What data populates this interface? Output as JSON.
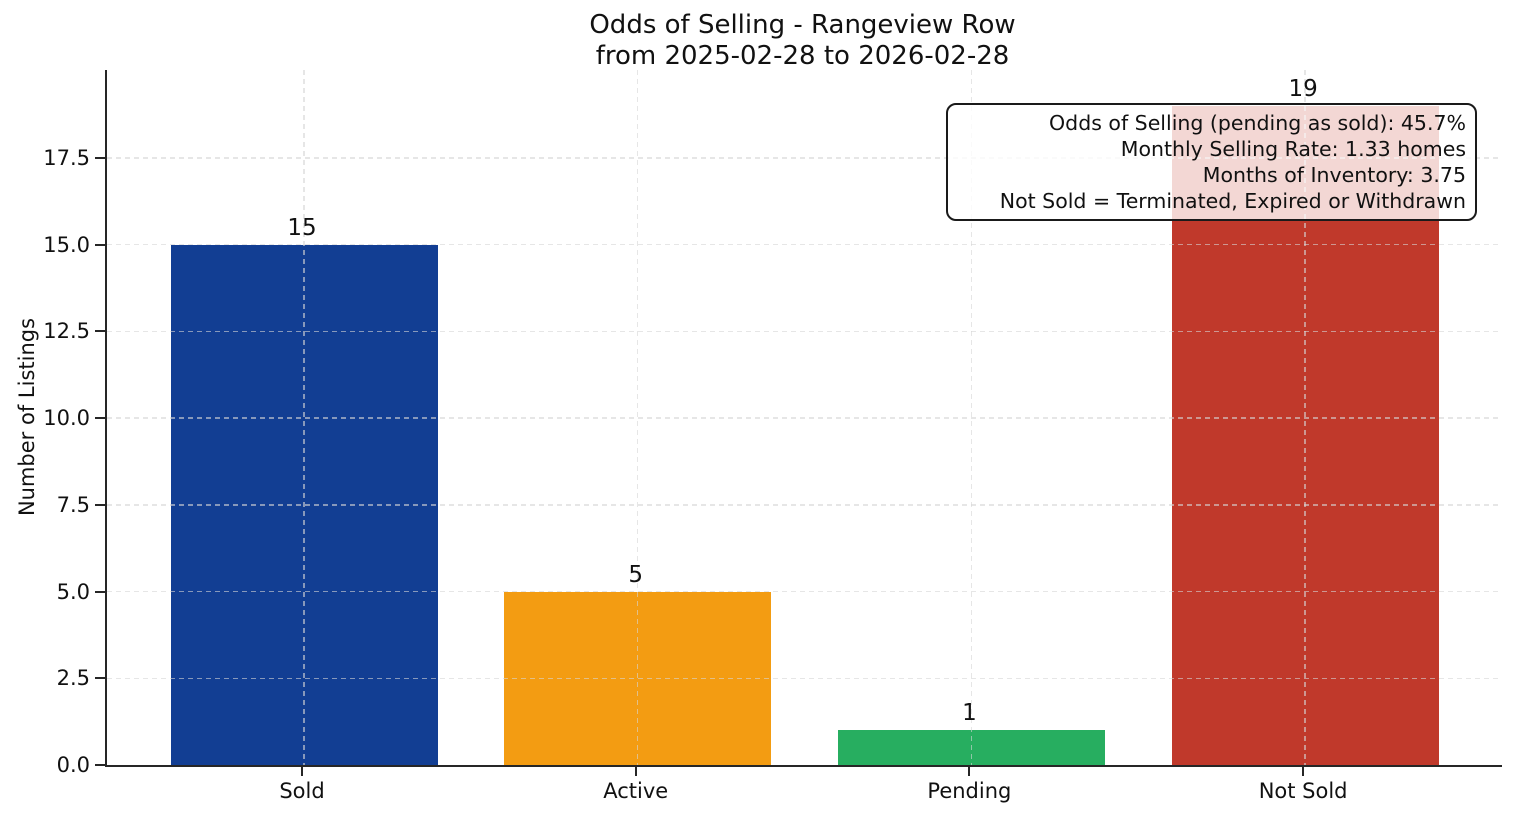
{
  "title": {
    "line1": "Odds of Selling - Rangeview Row",
    "line2": "from 2025-02-28 to 2026-02-28"
  },
  "annotation": {
    "lines": [
      "Odds of Selling (pending as sold): 45.7%",
      "Monthly Selling Rate: 1.33 homes",
      "Months of Inventory: 3.75",
      "Not Sold = Terminated, Expired or Withdrawn"
    ]
  },
  "chart_data": {
    "type": "bar",
    "title": "Odds of Selling - Rangeview Row\nfrom 2025-02-28 to 2026-02-28",
    "categories": [
      "Sold",
      "Active",
      "Pending",
      "Not Sold"
    ],
    "values": [
      15,
      5,
      1,
      19
    ],
    "bar_value_labels": [
      "15",
      "5",
      "1",
      "19"
    ],
    "bar_colors": [
      "#123e93",
      "#f39c12",
      "#27ae60",
      "#c0392b"
    ],
    "xlabel": "",
    "ylabel": "Number of Listings",
    "ylim": [
      0,
      20
    ],
    "yticks": [
      0.0,
      2.5,
      5.0,
      7.5,
      10.0,
      12.5,
      15.0,
      17.5
    ],
    "ytick_labels": [
      "0.0",
      "2.5",
      "5.0",
      "7.5",
      "10.0",
      "12.5",
      "15.0",
      "17.5"
    ],
    "grid": true,
    "grid_style": "dashed",
    "legend": "none",
    "annotation_box": {
      "position": "top-right",
      "lines": [
        "Odds of Selling (pending as sold): 45.7%",
        "Monthly Selling Rate: 1.33 homes",
        "Months of Inventory: 3.75",
        "Not Sold = Terminated, Expired or Withdrawn"
      ]
    }
  }
}
